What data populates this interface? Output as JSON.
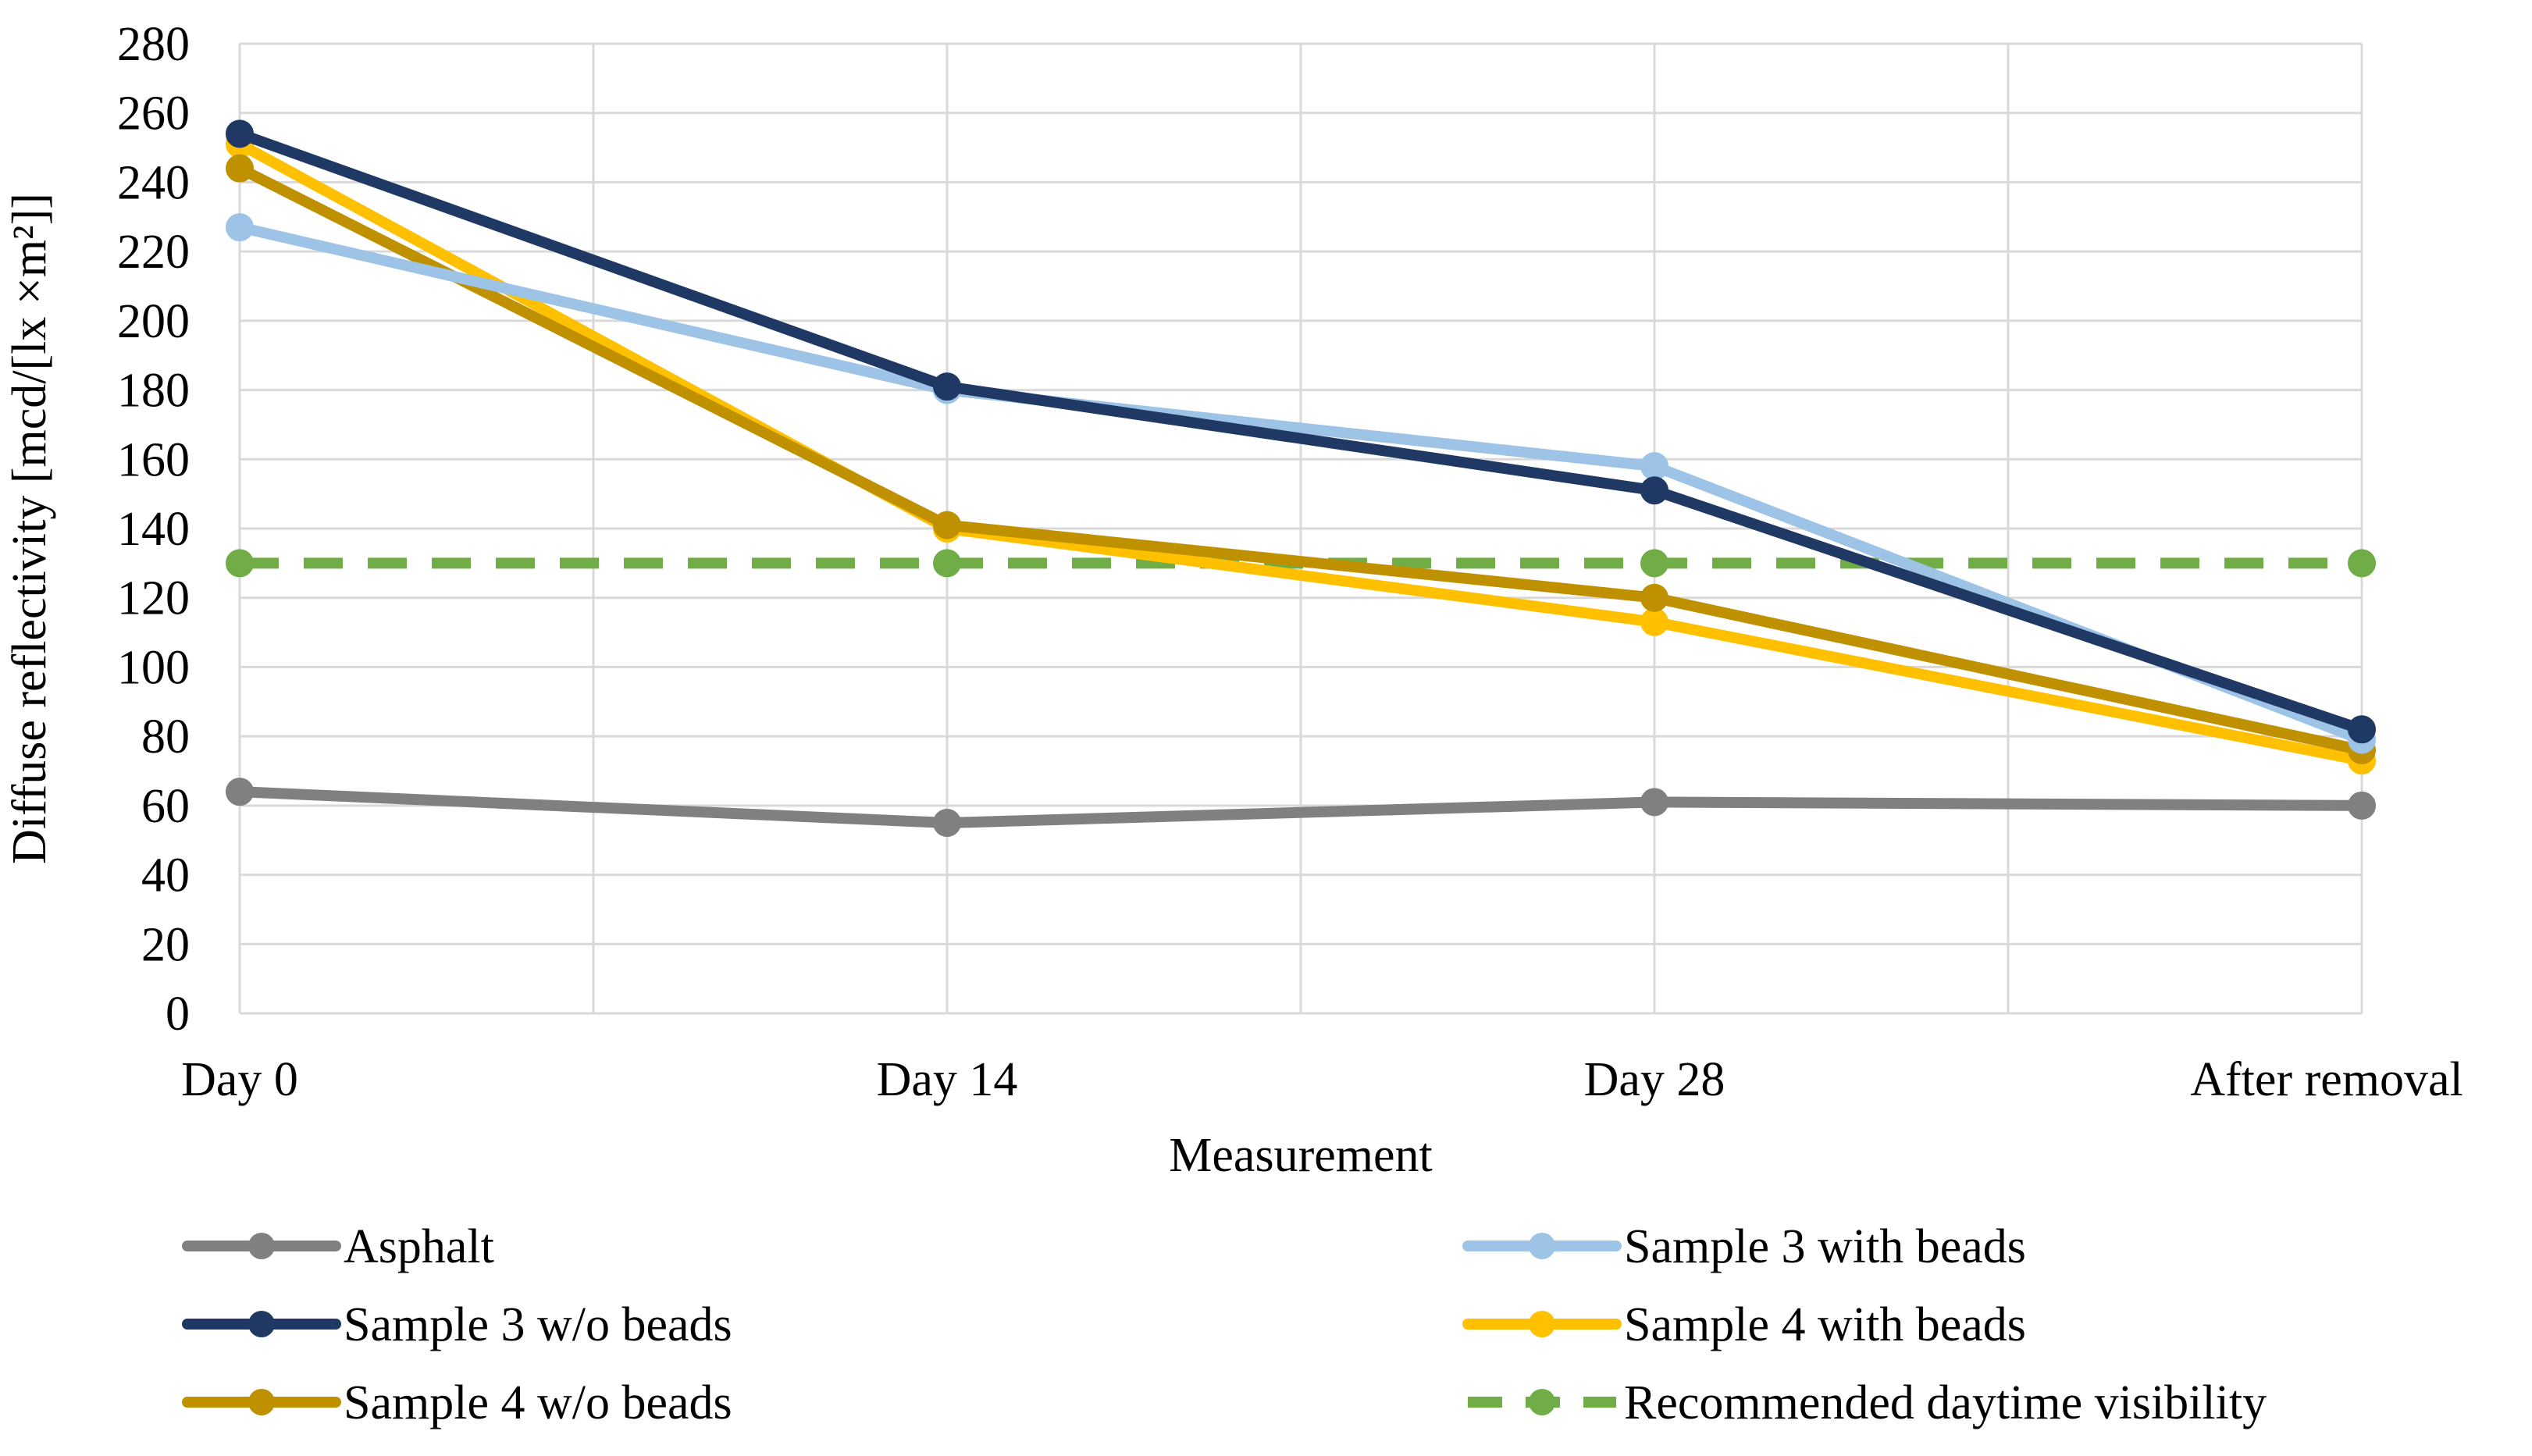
{
  "chart_data": {
    "type": "line",
    "title": "",
    "xlabel": "Measurement",
    "ylabel": "Diffuse reflectivity [mcd/[lx ×m²]]",
    "categories": [
      "Day 0",
      "Day 14",
      "Day 28",
      "After removal"
    ],
    "ylim": [
      0,
      280
    ],
    "ytick_step": 20,
    "grid": true,
    "legend_position": "bottom",
    "series": [
      {
        "name": "Asphalt",
        "values": [
          64,
          55,
          61,
          60
        ],
        "color": "#808080",
        "dashed": false
      },
      {
        "name": "Sample 3 with beads",
        "values": [
          227,
          180,
          158,
          79
        ],
        "color": "#9dc3e6",
        "dashed": false
      },
      {
        "name": "Sample 3 w/o beads",
        "values": [
          254,
          181,
          151,
          82
        ],
        "color": "#1f3864",
        "dashed": false
      },
      {
        "name": "Sample 4 with beads",
        "values": [
          251,
          140,
          113,
          73
        ],
        "color": "#ffc000",
        "dashed": false
      },
      {
        "name": "Sample 4 w/o beads",
        "values": [
          244,
          141,
          120,
          76
        ],
        "color": "#bf9000",
        "dashed": false
      },
      {
        "name": "Recommended daytime visibility",
        "values": [
          130,
          130,
          130,
          130
        ],
        "color": "#70ad47",
        "dashed": true
      }
    ]
  }
}
